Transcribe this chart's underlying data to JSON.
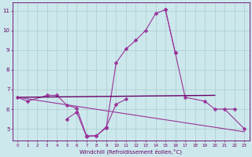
{
  "x_all": [
    0,
    1,
    2,
    3,
    4,
    5,
    6,
    7,
    8,
    9,
    10,
    11,
    12,
    13,
    14,
    15,
    16,
    17,
    18,
    19,
    20,
    21,
    22,
    23
  ],
  "line_zigzag": [
    6.6,
    6.4,
    null,
    6.7,
    6.7,
    6.2,
    6.05,
    4.65,
    4.65,
    5.1,
    6.25,
    6.5,
    null,
    null,
    null,
    null,
    null,
    null,
    null,
    null,
    null,
    null,
    null,
    null
  ],
  "line_peak": [
    null,
    null,
    null,
    null,
    null,
    5.5,
    5.85,
    4.6,
    4.65,
    5.05,
    8.35,
    9.05,
    9.5,
    10.0,
    10.85,
    11.05,
    8.85,
    null,
    null,
    null,
    null,
    null,
    null,
    null
  ],
  "line_right": [
    null,
    null,
    null,
    null,
    null,
    null,
    null,
    null,
    null,
    null,
    null,
    null,
    null,
    null,
    null,
    11.05,
    8.85,
    6.6,
    null,
    6.4,
    6.0,
    null,
    6.0,
    null
  ],
  "line_right2": [
    null,
    null,
    null,
    null,
    null,
    null,
    null,
    null,
    null,
    null,
    null,
    null,
    null,
    null,
    null,
    null,
    null,
    null,
    null,
    null,
    null,
    6.0,
    null,
    5.0
  ],
  "trend1_x": [
    0,
    20
  ],
  "trend1_y": [
    6.6,
    6.7
  ],
  "trend2_x": [
    0,
    23
  ],
  "trend2_y": [
    6.6,
    4.85
  ],
  "background_color": "#cce8ec",
  "grid_color": "#aacccc",
  "line_color_main": "#993399",
  "line_color_dark": "#660066",
  "xlabel": "Windchill (Refroidissement éolien,°C)",
  "ylim": [
    4.4,
    11.4
  ],
  "xlim": [
    -0.5,
    23.5
  ],
  "yticks": [
    5,
    6,
    7,
    8,
    9,
    10,
    11
  ],
  "xticks": [
    0,
    1,
    2,
    3,
    4,
    5,
    6,
    7,
    8,
    9,
    10,
    11,
    12,
    13,
    14,
    15,
    16,
    17,
    18,
    19,
    20,
    21,
    22,
    23
  ]
}
